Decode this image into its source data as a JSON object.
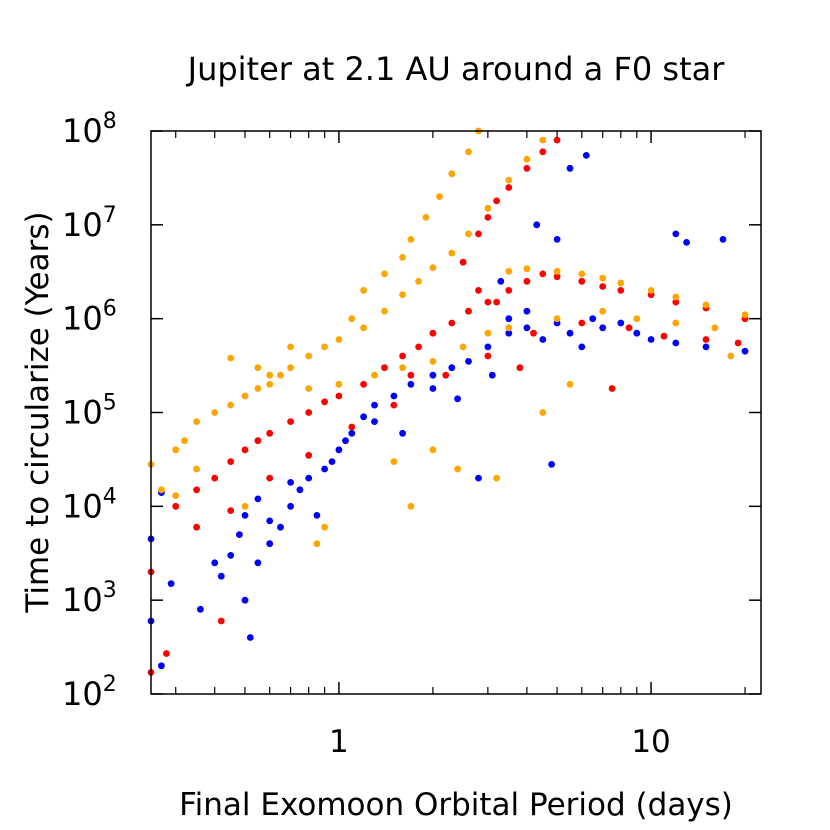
{
  "chart_data": {
    "type": "scatter",
    "title": "Jupiter at 2.1 AU around a F0 star",
    "xlabel": "Final Exomoon Orbital Period (days)",
    "ylabel": "Time to circularize (Years)",
    "xscale": "log",
    "yscale": "log",
    "xlim": [
      0.25,
      22.5
    ],
    "ylim": [
      100,
      100000000
    ],
    "x_ticks": [
      {
        "value": 1,
        "label": "1"
      },
      {
        "value": 10,
        "label": "10"
      }
    ],
    "y_ticks": [
      {
        "value": 100,
        "base": "10",
        "exp": "2"
      },
      {
        "value": 1000,
        "base": "10",
        "exp": "3"
      },
      {
        "value": 10000,
        "base": "10",
        "exp": "4"
      },
      {
        "value": 100000,
        "base": "10",
        "exp": "5"
      },
      {
        "value": 1000000,
        "base": "10",
        "exp": "6"
      },
      {
        "value": 10000000,
        "base": "10",
        "exp": "7"
      },
      {
        "value": 100000000,
        "base": "10",
        "exp": "8"
      }
    ],
    "legend": "none",
    "grid": false,
    "series": [
      {
        "name": "blue",
        "color": "#0000ff",
        "points": [
          [
            0.27,
            200
          ],
          [
            0.25,
            600
          ],
          [
            0.29,
            1500
          ],
          [
            0.25,
            4500
          ],
          [
            0.27,
            14000
          ],
          [
            0.36,
            800
          ],
          [
            0.4,
            2500
          ],
          [
            0.42,
            1800
          ],
          [
            0.45,
            3000
          ],
          [
            0.5,
            1000
          ],
          [
            0.52,
            400
          ],
          [
            0.48,
            5000
          ],
          [
            0.55,
            2500
          ],
          [
            0.5,
            8000
          ],
          [
            0.6,
            4000
          ],
          [
            0.65,
            6000
          ],
          [
            0.7,
            10000
          ],
          [
            0.55,
            12000
          ],
          [
            0.75,
            15000
          ],
          [
            0.8,
            20000
          ],
          [
            0.9,
            25000
          ],
          [
            0.85,
            8000
          ],
          [
            1.0,
            40000
          ],
          [
            1.1,
            60000
          ],
          [
            1.2,
            90000
          ],
          [
            1.3,
            120000
          ],
          [
            1.5,
            150000
          ],
          [
            1.7,
            200000
          ],
          [
            2.0,
            250000
          ],
          [
            2.3,
            300000
          ],
          [
            2.6,
            350000
          ],
          [
            3.0,
            500000
          ],
          [
            3.5,
            700000
          ],
          [
            4.0,
            800000
          ],
          [
            4.5,
            600000
          ],
          [
            5.0,
            900000
          ],
          [
            5.5,
            700000
          ],
          [
            6.0,
            500000
          ],
          [
            6.5,
            1000000
          ],
          [
            7.0,
            800000
          ],
          [
            8.0,
            900000
          ],
          [
            9.0,
            700000
          ],
          [
            10.0,
            600000
          ],
          [
            12.0,
            550000
          ],
          [
            15.0,
            500000
          ],
          [
            20.0,
            450000
          ],
          [
            3.5,
            1000000
          ],
          [
            4.0,
            1200000
          ],
          [
            3.3,
            2500000
          ],
          [
            4.3,
            10000000
          ],
          [
            5.5,
            40000000
          ],
          [
            6.2,
            55000000
          ],
          [
            12.0,
            8000000
          ],
          [
            13.0,
            6500000
          ],
          [
            17.0,
            7000000
          ],
          [
            5.0,
            7000000
          ],
          [
            1.3,
            80000
          ],
          [
            1.6,
            60000
          ],
          [
            2.8,
            20000
          ],
          [
            4.8,
            28000
          ],
          [
            0.95,
            30000
          ],
          [
            0.7,
            18000
          ],
          [
            0.6,
            7000
          ],
          [
            1.05,
            50000
          ],
          [
            2.4,
            140000
          ],
          [
            3.1,
            250000
          ],
          [
            2.0,
            180000
          ]
        ]
      },
      {
        "name": "red",
        "color": "#ff0000",
        "points": [
          [
            0.25,
            170
          ],
          [
            0.28,
            270
          ],
          [
            0.42,
            600
          ],
          [
            0.25,
            2000
          ],
          [
            0.3,
            10000
          ],
          [
            0.35,
            15000
          ],
          [
            0.4,
            20000
          ],
          [
            0.45,
            30000
          ],
          [
            0.5,
            40000
          ],
          [
            0.55,
            50000
          ],
          [
            0.6,
            60000
          ],
          [
            0.7,
            80000
          ],
          [
            0.8,
            100000
          ],
          [
            0.9,
            130000
          ],
          [
            1.0,
            150000
          ],
          [
            1.2,
            200000
          ],
          [
            1.4,
            300000
          ],
          [
            1.6,
            400000
          ],
          [
            1.8,
            500000
          ],
          [
            2.0,
            700000
          ],
          [
            2.3,
            900000
          ],
          [
            2.6,
            1200000
          ],
          [
            3.0,
            1500000
          ],
          [
            3.5,
            2000000
          ],
          [
            4.0,
            2500000
          ],
          [
            4.5,
            3000000
          ],
          [
            5.0,
            2800000
          ],
          [
            6.0,
            2500000
          ],
          [
            7.0,
            2200000
          ],
          [
            8.0,
            2000000
          ],
          [
            10.0,
            1800000
          ],
          [
            12.0,
            1500000
          ],
          [
            15.0,
            1300000
          ],
          [
            20.0,
            1000000
          ],
          [
            2.5,
            4000000
          ],
          [
            2.8,
            8000000
          ],
          [
            3.0,
            12000000
          ],
          [
            3.2,
            18000000
          ],
          [
            3.5,
            25000000
          ],
          [
            4.0,
            40000000
          ],
          [
            4.5,
            60000000
          ],
          [
            5.0,
            80000000
          ],
          [
            0.35,
            6000
          ],
          [
            0.45,
            9000
          ],
          [
            0.6,
            20000
          ],
          [
            0.8,
            35000
          ],
          [
            1.1,
            70000
          ],
          [
            1.5,
            120000
          ],
          [
            2.2,
            250000
          ],
          [
            3.0,
            400000
          ],
          [
            4.2,
            700000
          ],
          [
            6.0,
            900000
          ],
          [
            8.5,
            800000
          ],
          [
            11.0,
            650000
          ],
          [
            15.0,
            600000
          ],
          [
            19.0,
            550000
          ],
          [
            2.8,
            2000000
          ],
          [
            3.2,
            1500000
          ],
          [
            1.7,
            250000
          ],
          [
            3.8,
            300000
          ],
          [
            7.5,
            180000
          ]
        ]
      },
      {
        "name": "orange",
        "color": "#ffa500",
        "points": [
          [
            0.25,
            28000
          ],
          [
            0.27,
            15000
          ],
          [
            0.3,
            40000
          ],
          [
            0.32,
            50000
          ],
          [
            0.35,
            80000
          ],
          [
            0.4,
            100000
          ],
          [
            0.45,
            120000
          ],
          [
            0.5,
            150000
          ],
          [
            0.55,
            180000
          ],
          [
            0.6,
            200000
          ],
          [
            0.65,
            250000
          ],
          [
            0.7,
            300000
          ],
          [
            0.8,
            400000
          ],
          [
            0.9,
            500000
          ],
          [
            1.0,
            600000
          ],
          [
            1.2,
            800000
          ],
          [
            1.4,
            1200000
          ],
          [
            1.6,
            1800000
          ],
          [
            1.8,
            2500000
          ],
          [
            2.0,
            3500000
          ],
          [
            2.3,
            5000000
          ],
          [
            2.6,
            8000000
          ],
          [
            3.0,
            15000000
          ],
          [
            3.5,
            30000000
          ],
          [
            4.0,
            50000000
          ],
          [
            4.5,
            80000000
          ],
          [
            1.2,
            2000000
          ],
          [
            1.4,
            3000000
          ],
          [
            1.6,
            4500000
          ],
          [
            1.7,
            7000000
          ],
          [
            1.9,
            12000000
          ],
          [
            2.1,
            20000000
          ],
          [
            2.3,
            35000000
          ],
          [
            2.6,
            60000000
          ],
          [
            2.8,
            100000000
          ],
          [
            3.5,
            3200000
          ],
          [
            4.0,
            3400000
          ],
          [
            5.0,
            3200000
          ],
          [
            6.0,
            3000000
          ],
          [
            7.0,
            2700000
          ],
          [
            8.0,
            2400000
          ],
          [
            10.0,
            2000000
          ],
          [
            12.0,
            1700000
          ],
          [
            15.0,
            1400000
          ],
          [
            20.0,
            1100000
          ],
          [
            0.45,
            380000
          ],
          [
            0.6,
            250000
          ],
          [
            0.8,
            180000
          ],
          [
            1.0,
            200000
          ],
          [
            1.3,
            250000
          ],
          [
            1.6,
            300000
          ],
          [
            2.0,
            350000
          ],
          [
            2.5,
            500000
          ],
          [
            3.0,
            700000
          ],
          [
            3.5,
            800000
          ],
          [
            5.0,
            1000000
          ],
          [
            7.0,
            1200000
          ],
          [
            9.0,
            1000000
          ],
          [
            12.0,
            900000
          ],
          [
            16.0,
            800000
          ],
          [
            18.0,
            400000
          ],
          [
            1.1,
            1000000
          ],
          [
            0.7,
            500000
          ],
          [
            0.55,
            300000
          ],
          [
            0.3,
            13000
          ],
          [
            0.35,
            25000
          ],
          [
            0.5,
            10000
          ],
          [
            0.85,
            4000
          ],
          [
            0.9,
            6000
          ],
          [
            1.5,
            30000
          ],
          [
            2.0,
            40000
          ],
          [
            2.4,
            25000
          ],
          [
            3.2,
            20000
          ],
          [
            1.7,
            10000
          ],
          [
            4.5,
            100000
          ],
          [
            5.5,
            200000
          ]
        ]
      }
    ]
  }
}
